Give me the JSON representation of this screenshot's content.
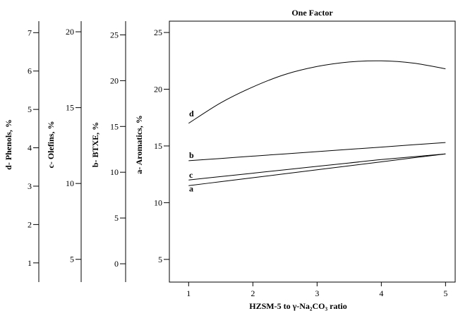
{
  "chart_data": {
    "type": "line",
    "title": "One Factor",
    "xlabel": "HZSM-5 to γ-Na₂CO₃ ratio",
    "x": [
      1,
      1.5,
      2,
      2.5,
      3,
      3.5,
      4,
      4.5,
      5
    ],
    "xlim": [
      0.7,
      5.15
    ],
    "xticks": [
      1,
      2,
      3,
      4,
      5
    ],
    "axes": {
      "aromatics": {
        "label": "a- Aromatics, %",
        "range": [
          3,
          26
        ],
        "ticks": [
          5,
          10,
          15,
          20,
          25
        ]
      },
      "btxe": {
        "label": "b- BTXE, %",
        "range": [
          -2,
          26.5
        ],
        "ticks": [
          0,
          5,
          10,
          15,
          20,
          25
        ]
      },
      "olefins": {
        "label": "c- Olefins, %",
        "range": [
          3.5,
          20.7
        ],
        "ticks": [
          5,
          10,
          15,
          20
        ]
      },
      "phenols": {
        "label": "d- Phenols, %",
        "range": [
          0.5,
          7.3
        ],
        "ticks": [
          1,
          2,
          3,
          4,
          5,
          6,
          7
        ]
      }
    },
    "series": [
      {
        "name": "a",
        "axis": "aromatics",
        "values": [
          11.5,
          11.85,
          12.2,
          12.55,
          12.9,
          13.25,
          13.6,
          13.95,
          14.3
        ]
      },
      {
        "name": "b",
        "axis": "aromatics",
        "values": [
          13.7,
          13.9,
          14.1,
          14.3,
          14.5,
          14.7,
          14.9,
          15.1,
          15.3
        ]
      },
      {
        "name": "c",
        "axis": "aromatics",
        "values": [
          12.0,
          12.3,
          12.6,
          12.9,
          13.2,
          13.5,
          13.8,
          14.05,
          14.3
        ]
      },
      {
        "name": "d",
        "axis": "aromatics",
        "values": [
          17.0,
          18.8,
          20.2,
          21.3,
          22.0,
          22.4,
          22.5,
          22.3,
          21.8
        ]
      }
    ]
  }
}
